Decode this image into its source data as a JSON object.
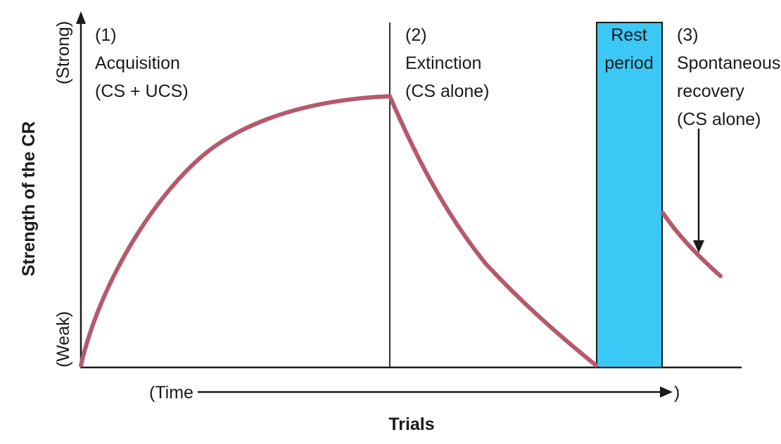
{
  "axes": {
    "y_label": "Strength of the CR",
    "y_top_label": "(Strong)",
    "y_bottom_label": "(Weak)",
    "x_label": "Trials",
    "time_open": "(Time",
    "time_close": ")"
  },
  "phases": {
    "acquisition": {
      "number": "(1)",
      "name": "Acquisition",
      "condition": "(CS + UCS)"
    },
    "extinction": {
      "number": "(2)",
      "name": "Extinction",
      "condition": "(CS alone)"
    },
    "rest": {
      "line1": "Rest",
      "line2": "period"
    },
    "recovery": {
      "number": "(3)",
      "name1": "Spontaneous",
      "name2": "recovery",
      "condition": "(CS alone)"
    }
  },
  "colors": {
    "curve": "#b5596c",
    "rest_fill": "#3cc8f4",
    "ink": "#1a1a1a"
  }
}
